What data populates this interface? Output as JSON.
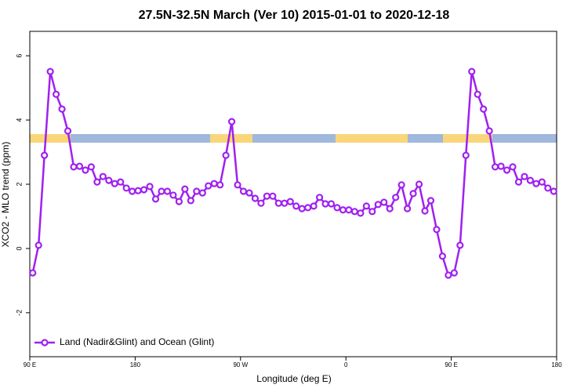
{
  "chart_data": {
    "type": "line",
    "title": "27.5N-32.5N March (Ver 10)   2015-01-01 to 2020-12-18",
    "x_label": "Longitude (deg E)",
    "y_label": "XCO2 - MLO trend (ppm)",
    "x": [
      92.5,
      97.5,
      102.5,
      107.5,
      112.5,
      117.5,
      122.5,
      127.5,
      132.5,
      137.5,
      142.5,
      147.5,
      152.5,
      157.5,
      162.5,
      167.5,
      172.5,
      177.5,
      182.5,
      187.5,
      192.5,
      197.5,
      202.5,
      207.5,
      212.5,
      217.5,
      222.5,
      227.5,
      232.5,
      237.5,
      242.5,
      247.5,
      252.5,
      257.5,
      262.5,
      267.5,
      272.5,
      277.5,
      282.5,
      287.5,
      292.5,
      297.5,
      302.5,
      307.5,
      312.5,
      317.5,
      322.5,
      327.5,
      332.5,
      337.5,
      342.5,
      347.5,
      352.5,
      357.5,
      362.5,
      367.5,
      372.5,
      377.5,
      382.5,
      387.5,
      392.5,
      397.5,
      402.5,
      407.5,
      412.5,
      417.5,
      422.5,
      427.5,
      432.5,
      437.5,
      442.5,
      447.5,
      452.5,
      457.5,
      462.5,
      467.5,
      472.5,
      477.5,
      482.5,
      487.5,
      492.5,
      497.5,
      502.5,
      507.5,
      512.5,
      517.5,
      522.5,
      527.5,
      532.5,
      537.5
    ],
    "series": [
      {
        "name": "Land (Nadir&Glint) and Ocean (Glint)",
        "color": "#a020f0",
        "values": [
          -0.76,
          0.1,
          2.9,
          5.51,
          4.8,
          4.34,
          3.66,
          2.54,
          2.56,
          2.44,
          2.54,
          2.07,
          2.24,
          2.12,
          2.02,
          2.07,
          1.88,
          1.78,
          1.8,
          1.83,
          1.93,
          1.54,
          1.78,
          1.78,
          1.66,
          1.46,
          1.85,
          1.49,
          1.78,
          1.73,
          1.95,
          2.02,
          1.98,
          2.9,
          3.95,
          1.98,
          1.78,
          1.73,
          1.56,
          1.41,
          1.63,
          1.63,
          1.41,
          1.41,
          1.46,
          1.32,
          1.24,
          1.27,
          1.32,
          1.59,
          1.39,
          1.39,
          1.27,
          1.2,
          1.2,
          1.15,
          1.1,
          1.32,
          1.15,
          1.37,
          1.44,
          1.24,
          1.59,
          1.98,
          1.24,
          1.71,
          2.0,
          1.17,
          1.49,
          0.59,
          -0.24,
          -0.83,
          -0.76,
          0.1,
          2.9,
          5.51,
          4.8,
          4.34,
          3.66,
          2.54,
          2.56,
          2.44,
          2.54,
          2.07,
          2.24,
          2.12,
          2.02,
          2.07,
          1.88,
          1.78
        ]
      }
    ],
    "xlim": [
      90,
      540
    ],
    "xticks": [
      {
        "value": 90,
        "label": "90 E"
      },
      180,
      {
        "value": 270,
        "label": "90 W"
      },
      {
        "value": 360,
        "label": "0"
      },
      {
        "value": 450,
        "label": "90 E"
      },
      {
        "value": 540,
        "label": "180"
      }
    ],
    "ylim": [
      -3.37,
      6.76
    ],
    "yticks": [
      -2,
      0,
      2,
      4,
      6
    ],
    "legend": "bottomleft"
  }
}
